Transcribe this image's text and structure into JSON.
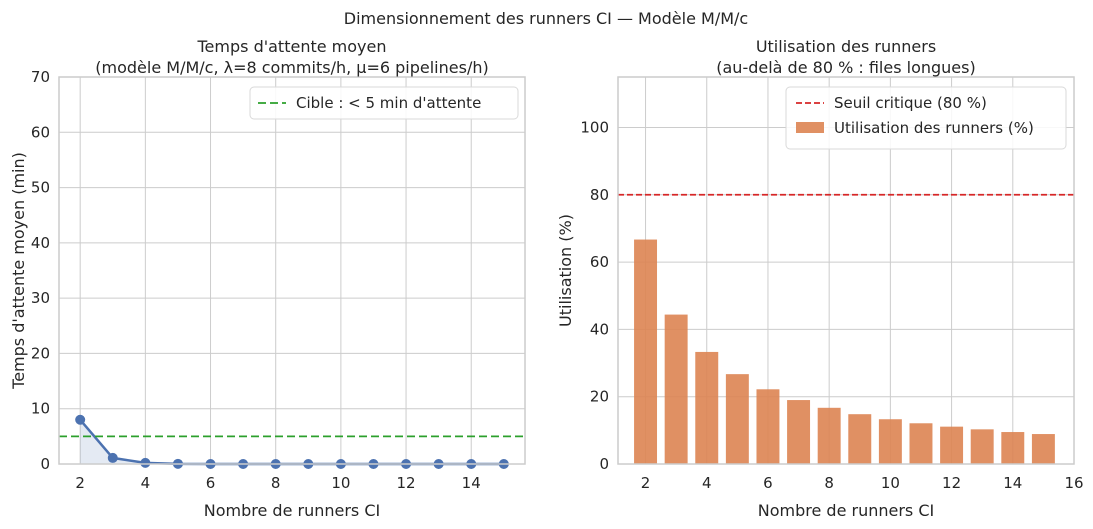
{
  "figure": {
    "suptitle": "Dimensionnement des runners CI — Modèle M/M/c"
  },
  "colors": {
    "line": "#4c72b0",
    "target": "#2ca02c",
    "bar": "#dd8452",
    "threshold": "#d62728",
    "grid": "#cccccc",
    "spine": "#cccccc",
    "text": "#262626"
  },
  "chart_data": [
    {
      "type": "line",
      "title_line1": "Temps d'attente moyen",
      "title_line2": "(modèle M/M/c, λ=8 commits/h, μ=6 pipelines/h)",
      "xlabel": "Nombre de runners CI",
      "ylabel": "Temps d'attente moyen (min)",
      "xlim": [
        1.35,
        15.65
      ],
      "ylim": [
        0,
        70
      ],
      "xticks": [
        2,
        4,
        6,
        8,
        10,
        12,
        14
      ],
      "yticks": [
        0,
        10,
        20,
        30,
        40,
        50,
        60,
        70
      ],
      "grid": true,
      "legend_position": "top-right",
      "x": [
        2,
        3,
        4,
        5,
        6,
        7,
        8,
        9,
        10,
        11,
        12,
        13,
        14,
        15
      ],
      "series": [
        {
          "values": [
            8.0,
            1.1,
            0.2,
            0.03,
            0.0,
            0.0,
            0.0,
            0.0,
            0.0,
            0.0,
            0.0,
            0.0,
            0.0,
            0.0
          ],
          "fill": true
        }
      ],
      "hline": {
        "y": 5,
        "label": "Cible : < 5 min d'attente",
        "style": "dashed"
      }
    },
    {
      "type": "bar",
      "title_line1": "Utilisation des runners",
      "title_line2": "(au-delà de 80 % : files longues)",
      "xlabel": "Nombre de runners CI",
      "ylabel": "Utilisation (%)",
      "xlim": [
        1.1,
        16
      ],
      "ylim": [
        0,
        115
      ],
      "xticks": [
        2,
        4,
        6,
        8,
        10,
        12,
        14,
        16
      ],
      "yticks": [
        0,
        20,
        40,
        60,
        80,
        100
      ],
      "grid": true,
      "legend_position": "top-right",
      "x": [
        2,
        3,
        4,
        5,
        6,
        7,
        8,
        9,
        10,
        11,
        12,
        13,
        14,
        15
      ],
      "series": [
        {
          "name": "Utilisation des runners (%)",
          "values": [
            66.7,
            44.4,
            33.3,
            26.7,
            22.2,
            19.0,
            16.7,
            14.8,
            13.3,
            12.1,
            11.1,
            10.3,
            9.5,
            8.9
          ]
        }
      ],
      "hline": {
        "y": 80,
        "label": "Seuil critique (80 %)",
        "style": "dashed"
      }
    }
  ]
}
